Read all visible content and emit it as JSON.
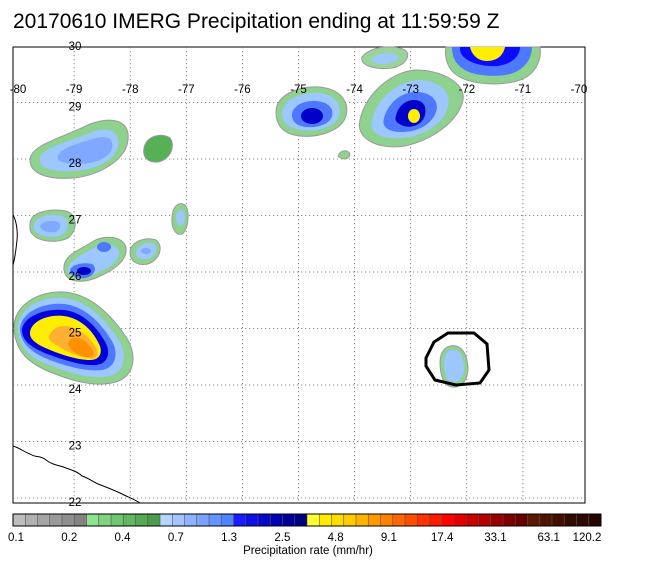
{
  "title": "20170610 IMERG Precipitation ending at 11:59:59 Z",
  "lon_labels": [
    "-80",
    "-79",
    "-78",
    "-77",
    "-76",
    "-75",
    "-74",
    "-73",
    "-72",
    "-71",
    "-70"
  ],
  "lat_labels": [
    "30",
    "29",
    "28",
    "27",
    "26",
    "25",
    "24",
    "23",
    "22"
  ],
  "colorbar": {
    "title": "Precipitation rate (mm/hr)",
    "tick_labels": [
      "0.1",
      "0.2",
      "0.4",
      "0.7",
      "1.3",
      "2.5",
      "4.8",
      "9.1",
      "17.4",
      "33.1",
      "63.1",
      "120.2"
    ],
    "colors": [
      "#bdbdbd",
      "#b1b1b1",
      "#a6a6a6",
      "#9a9a9a",
      "#8f8f8f",
      "#838383",
      "#8ee38e",
      "#7fd47f",
      "#71c671",
      "#62b862",
      "#55aa55",
      "#4a9c4a",
      "#b9d3ff",
      "#a4c3ff",
      "#8eb3ff",
      "#7aa3ff",
      "#6593ff",
      "#5083ff",
      "#1a1aff",
      "#1010e6",
      "#0808cc",
      "#0000b3",
      "#000099",
      "#000080",
      "#ffff33",
      "#ffee00",
      "#ffdd00",
      "#ffcc00",
      "#ffb300",
      "#ff9900",
      "#ff8000",
      "#ff6600",
      "#ff4d00",
      "#ff3300",
      "#ff1a00",
      "#ff0000",
      "#e60000",
      "#cc0000",
      "#b30000",
      "#990000",
      "#800000",
      "#660000",
      "#591a00",
      "#4d1400",
      "#400f00",
      "#330a00",
      "#2b0800",
      "#240600"
    ]
  },
  "colors": {
    "light_green": "#9bd49b",
    "green": "#55b155",
    "light_blue": "#9cc7ff",
    "blue": "#4a7dff",
    "dark_blue": "#0000ff",
    "yellow": "#ffee00",
    "orange": "#ff9a00",
    "coast": "#000000",
    "highlight_circle": "#000000"
  }
}
